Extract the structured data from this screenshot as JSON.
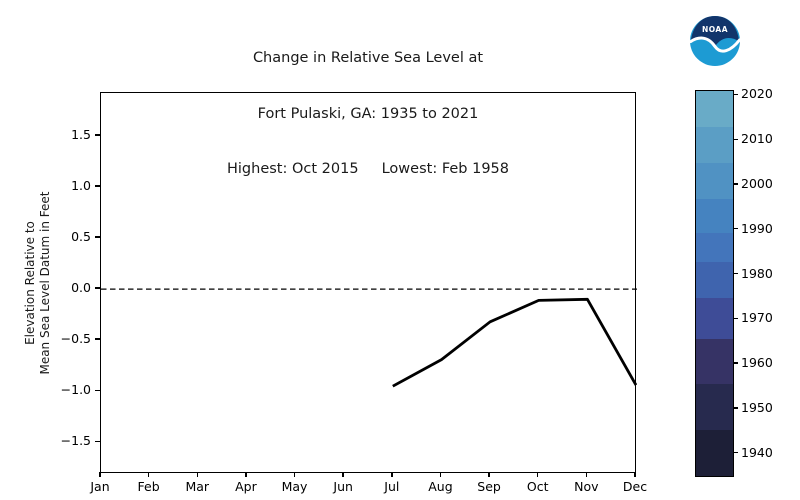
{
  "logo": {
    "text": "NOAA",
    "dark_color": "#12356b",
    "light_color": "#1d9bd3"
  },
  "chart_data": {
    "type": "line",
    "title_lines": [
      "Change in Relative Sea Level at",
      "Fort Pulaski, GA: 1935 to 2021",
      "Highest: Oct 2015     Lowest: Feb 1958"
    ],
    "ylabel_lines": [
      "Elevation Relative to",
      "Mean Sea Level Datum in Feet"
    ],
    "x_categories": [
      "Jan",
      "Feb",
      "Mar",
      "Apr",
      "May",
      "Jun",
      "Jul",
      "Aug",
      "Sep",
      "Oct",
      "Nov",
      "Dec"
    ],
    "y_tick_values": [
      1.5,
      1.0,
      0.5,
      0.0,
      -0.5,
      -1.0,
      -1.5
    ],
    "y_tick_labels": [
      "1.5",
      "1.0",
      "0.5",
      "0.0",
      "−0.5",
      "−1.0",
      "−1.5"
    ],
    "ylim": [
      -1.81,
      1.92
    ],
    "grid": false,
    "zero_line": {
      "value": 0.0,
      "style": "dashed",
      "color": "#000000"
    },
    "series": [
      {
        "name": "monthly-relative-sea-level",
        "color": "#000000",
        "points": [
          {
            "month": "Jul",
            "value": -0.95
          },
          {
            "month": "Aug",
            "value": -0.69
          },
          {
            "month": "Sep",
            "value": -0.32
          },
          {
            "month": "Oct",
            "value": -0.11
          },
          {
            "month": "Nov",
            "value": -0.1
          },
          {
            "month": "Dec",
            "value": -0.94
          }
        ]
      }
    ],
    "colorbar": {
      "tick_years": [
        2020,
        2010,
        2000,
        1990,
        1980,
        1970,
        1960,
        1950,
        1940
      ],
      "year_range": [
        1935,
        2021
      ],
      "colors_top_to_bottom": [
        "#69abc7",
        "#5b9ec5",
        "#5092c3",
        "#4583c0",
        "#4375bb",
        "#3f64ae",
        "#3e4c97",
        "#363365",
        "#272a4e",
        "#1d1f37"
      ],
      "stops_percent": [
        0,
        9.35,
        18.7,
        28.05,
        36.88,
        44.42,
        53.77,
        64.42,
        76.1,
        88.05,
        100
      ]
    }
  }
}
